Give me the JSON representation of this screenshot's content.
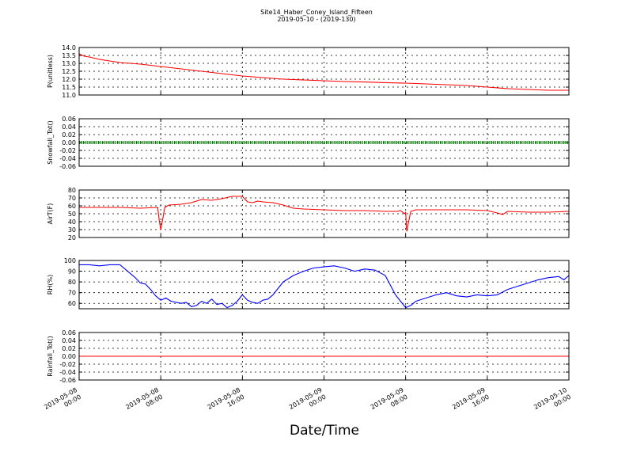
{
  "chart_data": {
    "type": "line",
    "title": "Site14_Haber_Coney_Island_Fifteen",
    "subtitle": "2019-05-10 - (2019-130)",
    "xlabel": "Date/Time",
    "x_ticks": [
      [
        "2019-05-08",
        "00:00"
      ],
      [
        "2019-05-08",
        "08:00"
      ],
      [
        "2019-05-08",
        "16:00"
      ],
      [
        "2019-05-09",
        "00:00"
      ],
      [
        "2019-05-09",
        "08:00"
      ],
      [
        "2019-05-09",
        "16:00"
      ],
      [
        "2019-05-10",
        "00:00"
      ]
    ],
    "x_range_hours": [
      0,
      48
    ],
    "grid": true,
    "panels": [
      {
        "ylabel": "P(unitless)",
        "ylim": [
          11.0,
          14.0
        ],
        "yticks": [
          "11.0",
          "11.5",
          "12.0",
          "12.5",
          "13.0",
          "13.5",
          "14.0"
        ],
        "color": "#ff0000",
        "style": "line",
        "series": {
          "x": [
            0,
            0.5,
            1,
            2,
            3,
            4,
            6,
            8,
            10,
            12,
            14,
            16,
            18,
            20,
            22,
            24,
            26,
            28,
            30,
            32,
            34,
            36,
            38,
            40,
            42,
            44,
            46,
            48
          ],
          "values": [
            13.6,
            13.45,
            13.4,
            13.25,
            13.15,
            13.05,
            12.95,
            12.8,
            12.65,
            12.5,
            12.35,
            12.2,
            12.1,
            12.0,
            11.95,
            11.9,
            11.85,
            11.82,
            11.78,
            11.75,
            11.7,
            11.65,
            11.6,
            11.5,
            11.4,
            11.35,
            11.3,
            11.3
          ]
        }
      },
      {
        "ylabel": "Snowfall_Tot()",
        "ylim": [
          -0.06,
          0.06
        ],
        "yticks": [
          "-0.06",
          "-0.04",
          "-0.02",
          "0.00",
          "0.02",
          "0.04",
          "0.06"
        ],
        "color": "#008000",
        "style": "dots",
        "series": {
          "x": [
            0,
            48
          ],
          "values": [
            0.0,
            0.0
          ]
        }
      },
      {
        "ylabel": "AirT(F)",
        "ylim": [
          20,
          80
        ],
        "yticks": [
          "20",
          "30",
          "40",
          "50",
          "60",
          "70",
          "80"
        ],
        "color": "#ff0000",
        "style": "line",
        "series": {
          "x": [
            0,
            2,
            4,
            6,
            7.7,
            7.85,
            8.0,
            8.4,
            8.8,
            10,
            11,
            12,
            13,
            14,
            15,
            16,
            16.5,
            17,
            17.5,
            18,
            19,
            20,
            21,
            22,
            24,
            26,
            28,
            30,
            32,
            31.2,
            31.5,
            31.9,
            32.1,
            32.5,
            33,
            34,
            36,
            38,
            40,
            41,
            41.5,
            42,
            44,
            46,
            48
          ],
          "values": [
            58,
            58,
            58,
            57,
            58,
            42,
            30,
            58,
            61,
            62,
            64,
            68,
            67,
            69,
            72,
            72,
            65,
            64,
            66,
            65,
            64,
            61,
            57,
            56,
            55,
            54,
            54,
            53,
            52,
            53,
            54,
            50,
            28,
            53,
            55,
            55,
            55,
            55,
            54,
            51,
            49,
            53,
            52,
            52,
            53
          ]
        }
      },
      {
        "ylabel": "RH(%)",
        "ylim": [
          55,
          100
        ],
        "yticks": [
          "60",
          "70",
          "80",
          "90",
          "100"
        ],
        "color": "#0000ff",
        "style": "line",
        "series": {
          "x": [
            0,
            1,
            2,
            3,
            4,
            4.5,
            5,
            5.5,
            6,
            6.5,
            7,
            7.5,
            8,
            8.5,
            9,
            10,
            10.5,
            11,
            11.5,
            12,
            12.5,
            13,
            13.5,
            14,
            14.5,
            15,
            15.5,
            16,
            16.5,
            17,
            17.5,
            18,
            18.5,
            19,
            20,
            21,
            22,
            23,
            24,
            25,
            26,
            27,
            28,
            29,
            30,
            31,
            31.5,
            32,
            32.5,
            33,
            34,
            35,
            36,
            37,
            38,
            39,
            40,
            41,
            42,
            43,
            44,
            45,
            46,
            47,
            47.5,
            48
          ],
          "values": [
            96,
            96,
            95,
            96,
            96,
            92,
            88,
            84,
            79,
            78,
            73,
            67,
            63,
            65,
            62,
            60,
            61,
            57,
            58,
            62,
            60,
            64,
            59,
            60,
            56,
            58,
            62,
            68,
            63,
            61,
            60,
            63,
            64,
            68,
            80,
            86,
            90,
            93,
            94,
            95,
            93,
            90,
            92,
            91,
            86,
            68,
            62,
            56,
            58,
            62,
            65,
            68,
            70,
            67,
            66,
            68,
            67,
            68,
            73,
            76,
            79,
            82,
            84,
            85,
            82,
            86
          ]
        }
      },
      {
        "ylabel": "Rainfall_Tot()",
        "ylim": [
          -0.06,
          0.06
        ],
        "yticks": [
          "-0.06",
          "-0.04",
          "-0.02",
          "0.00",
          "0.02",
          "0.04",
          "0.06"
        ],
        "color": "#ff0000",
        "style": "line",
        "series": {
          "x": [
            0,
            48
          ],
          "values": [
            0.0,
            0.0
          ]
        }
      }
    ]
  }
}
